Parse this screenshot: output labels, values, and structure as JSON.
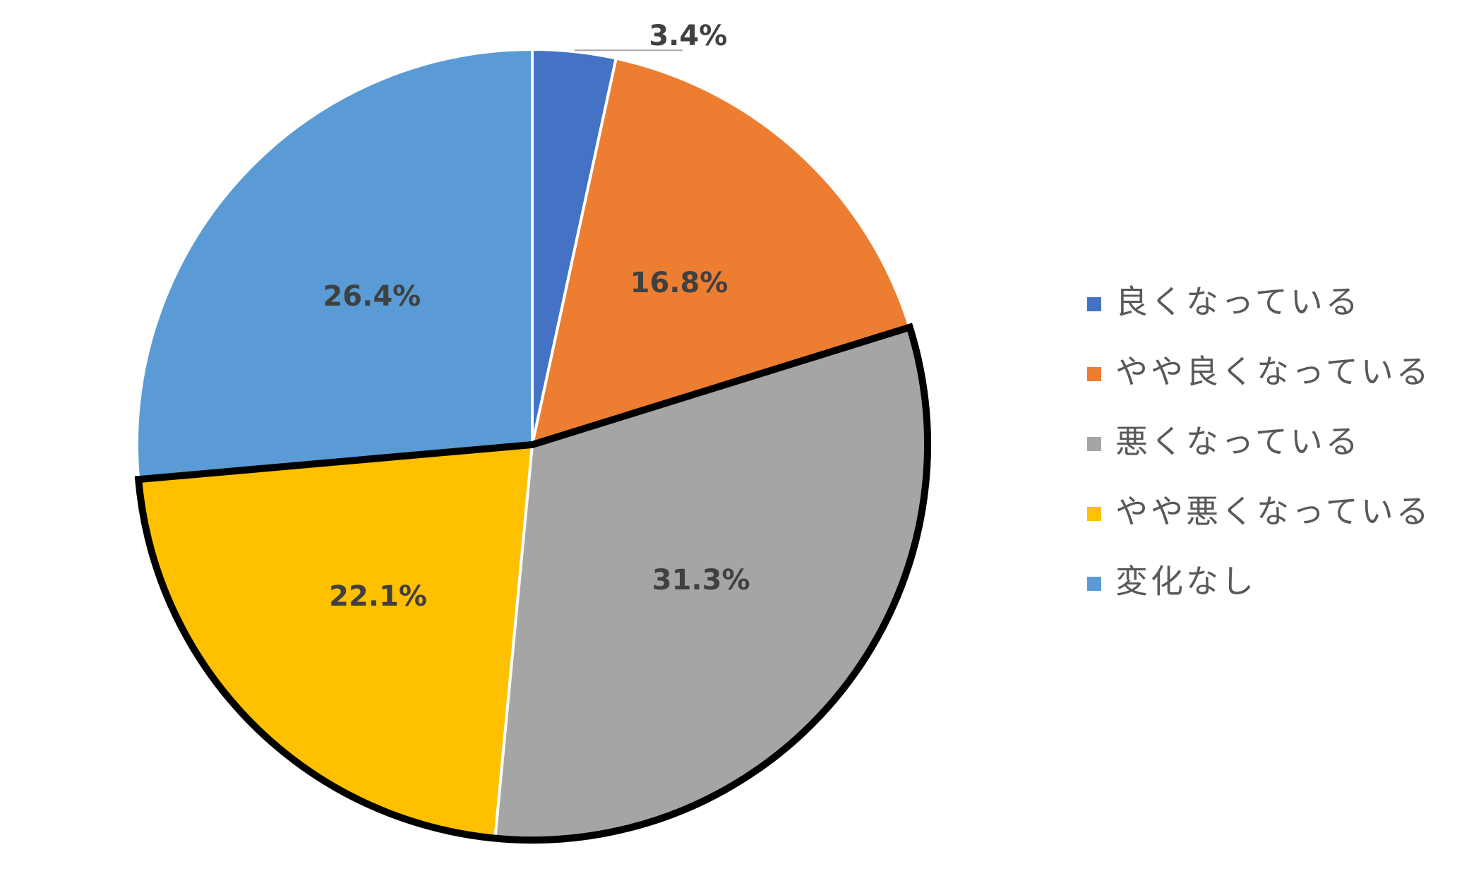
{
  "chart_data": {
    "type": "pie",
    "categories": [
      "良くなっている",
      "やや良くなっている",
      "悪くなっている",
      "やや悪くなっている",
      "変化なし"
    ],
    "values": [
      3.4,
      16.8,
      31.3,
      22.1,
      26.4
    ],
    "value_labels": [
      "3.4%",
      "16.8%",
      "31.3%",
      "22.1%",
      "26.4%"
    ],
    "colors": [
      "#4472c4",
      "#ed7d31",
      "#a5a5a5",
      "#ffc000",
      "#5b9bd5"
    ],
    "outlined": [
      2,
      3
    ],
    "legend": "right"
  }
}
